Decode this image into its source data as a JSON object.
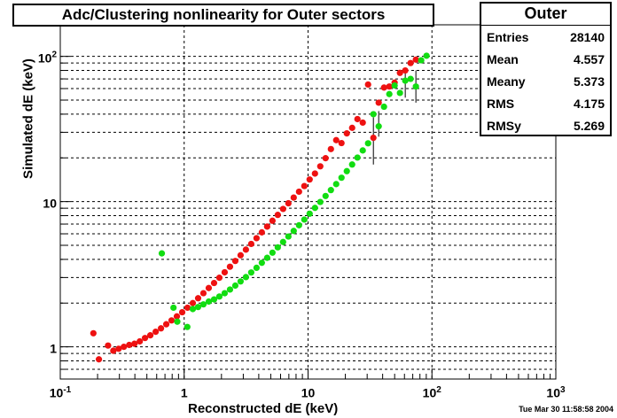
{
  "title": "Adc/Clustering nonlinearity for Outer sectors",
  "stats": {
    "title": "Outer",
    "rows": [
      {
        "label": "Entries",
        "value": "28140"
      },
      {
        "label": "Mean",
        "value": "4.557"
      },
      {
        "label": "Meany",
        "value": "5.373"
      },
      {
        "label": "RMS",
        "value": "4.175"
      },
      {
        "label": "RMSy",
        "value": "5.269"
      }
    ]
  },
  "footer": "Tue Mar 30 11:58:58 2004",
  "chart_data": {
    "type": "scatter",
    "title": "Adc/Clustering nonlinearity for Outer sectors",
    "xlabel": "Reconstructed dE (keV)",
    "ylabel": "Simulated dE (keV)",
    "xscale": "log",
    "yscale": "log",
    "xlim": [
      0.1,
      1000
    ],
    "ylim": [
      0.6,
      165
    ],
    "grid": true,
    "x_ticks": [
      {
        "value": 0.1,
        "base": "10",
        "exp": "-1"
      },
      {
        "value": 1,
        "base": "1",
        "exp": ""
      },
      {
        "value": 10,
        "base": "10",
        "exp": ""
      },
      {
        "value": 100,
        "base": "10",
        "exp": "2"
      },
      {
        "value": 1000,
        "base": "10",
        "exp": "3"
      }
    ],
    "y_ticks": [
      {
        "value": 1,
        "base": "1",
        "exp": ""
      },
      {
        "value": 10,
        "base": "10",
        "exp": ""
      },
      {
        "value": 100,
        "base": "10",
        "exp": "2"
      }
    ],
    "series": [
      {
        "color": "#ee1111",
        "points": [
          {
            "x": 0.185,
            "y": 1.24
          },
          {
            "x": 0.205,
            "y": 0.82
          },
          {
            "x": 0.243,
            "y": 1.02
          },
          {
            "x": 0.268,
            "y": 0.94
          },
          {
            "x": 0.296,
            "y": 0.97
          },
          {
            "x": 0.326,
            "y": 1.0
          },
          {
            "x": 0.36,
            "y": 1.03
          },
          {
            "x": 0.397,
            "y": 1.05
          },
          {
            "x": 0.438,
            "y": 1.09
          },
          {
            "x": 0.483,
            "y": 1.15
          },
          {
            "x": 0.533,
            "y": 1.2
          },
          {
            "x": 0.589,
            "y": 1.27
          },
          {
            "x": 0.65,
            "y": 1.34
          },
          {
            "x": 0.717,
            "y": 1.43
          },
          {
            "x": 0.791,
            "y": 1.52
          },
          {
            "x": 0.873,
            "y": 1.62
          },
          {
            "x": 0.964,
            "y": 1.73
          },
          {
            "x": 1.064,
            "y": 1.86
          },
          {
            "x": 1.174,
            "y": 2.0
          },
          {
            "x": 1.296,
            "y": 2.16
          },
          {
            "x": 1.43,
            "y": 2.34
          },
          {
            "x": 1.579,
            "y": 2.54
          },
          {
            "x": 1.743,
            "y": 2.75
          },
          {
            "x": 1.923,
            "y": 2.99
          },
          {
            "x": 2.123,
            "y": 3.26
          },
          {
            "x": 2.343,
            "y": 3.56
          },
          {
            "x": 2.586,
            "y": 3.9
          },
          {
            "x": 2.854,
            "y": 4.27
          },
          {
            "x": 3.15,
            "y": 4.67
          },
          {
            "x": 3.477,
            "y": 5.11
          },
          {
            "x": 3.838,
            "y": 5.6
          },
          {
            "x": 4.236,
            "y": 6.14
          },
          {
            "x": 4.676,
            "y": 6.73
          },
          {
            "x": 5.161,
            "y": 7.38
          },
          {
            "x": 5.696,
            "y": 8.1
          },
          {
            "x": 6.287,
            "y": 8.9
          },
          {
            "x": 6.94,
            "y": 9.74
          },
          {
            "x": 7.66,
            "y": 10.66
          },
          {
            "x": 8.455,
            "y": 11.7
          },
          {
            "x": 9.332,
            "y": 12.8
          },
          {
            "x": 10.3,
            "y": 14.2
          },
          {
            "x": 11.37,
            "y": 15.6
          },
          {
            "x": 12.55,
            "y": 17.5
          },
          {
            "x": 13.85,
            "y": 19.9
          },
          {
            "x": 15.29,
            "y": 23.0
          },
          {
            "x": 16.87,
            "y": 26.5
          },
          {
            "x": 18.62,
            "y": 25.3
          },
          {
            "x": 20.55,
            "y": 29.5
          },
          {
            "x": 22.69,
            "y": 32.2
          },
          {
            "x": 25.04,
            "y": 37.0
          },
          {
            "x": 27.64,
            "y": 35.0
          },
          {
            "x": 30.51,
            "y": 64.0
          },
          {
            "x": 33.68,
            "y": 27.5
          },
          {
            "x": 37.17,
            "y": 48.0
          },
          {
            "x": 41.03,
            "y": 61.0
          },
          {
            "x": 45.29,
            "y": 62.0
          },
          {
            "x": 49.98,
            "y": 66.0
          },
          {
            "x": 55.17,
            "y": 77.0
          },
          {
            "x": 60.9,
            "y": 80.0
          },
          {
            "x": 67.22,
            "y": 90.0
          },
          {
            "x": 74.2,
            "y": 95.0
          }
        ]
      },
      {
        "color": "#11dd11",
        "points": [
          {
            "x": 0.66,
            "y": 4.4
          },
          {
            "x": 0.82,
            "y": 1.86
          },
          {
            "x": 0.88,
            "y": 1.49
          },
          {
            "x": 1.06,
            "y": 1.37
          },
          {
            "x": 1.174,
            "y": 1.82
          },
          {
            "x": 1.296,
            "y": 1.88
          },
          {
            "x": 1.43,
            "y": 1.96
          },
          {
            "x": 1.579,
            "y": 2.05
          },
          {
            "x": 1.743,
            "y": 2.12
          },
          {
            "x": 1.923,
            "y": 2.22
          },
          {
            "x": 2.123,
            "y": 2.34
          },
          {
            "x": 2.343,
            "y": 2.48
          },
          {
            "x": 2.586,
            "y": 2.64
          },
          {
            "x": 2.854,
            "y": 2.82
          },
          {
            "x": 3.15,
            "y": 3.02
          },
          {
            "x": 3.477,
            "y": 3.25
          },
          {
            "x": 3.838,
            "y": 3.5
          },
          {
            "x": 4.236,
            "y": 3.79
          },
          {
            "x": 4.676,
            "y": 4.1
          },
          {
            "x": 5.161,
            "y": 4.45
          },
          {
            "x": 5.696,
            "y": 4.84
          },
          {
            "x": 6.287,
            "y": 5.27
          },
          {
            "x": 6.94,
            "y": 5.75
          },
          {
            "x": 7.66,
            "y": 6.28
          },
          {
            "x": 8.455,
            "y": 6.87
          },
          {
            "x": 9.332,
            "y": 7.52
          },
          {
            "x": 10.3,
            "y": 8.25
          },
          {
            "x": 11.37,
            "y": 9.05
          },
          {
            "x": 12.55,
            "y": 9.94
          },
          {
            "x": 13.85,
            "y": 10.93
          },
          {
            "x": 15.29,
            "y": 12.0
          },
          {
            "x": 16.87,
            "y": 13.2
          },
          {
            "x": 18.62,
            "y": 14.6
          },
          {
            "x": 20.55,
            "y": 16.2
          },
          {
            "x": 22.69,
            "y": 18.0
          },
          {
            "x": 25.04,
            "y": 20.1
          },
          {
            "x": 27.64,
            "y": 22.5
          },
          {
            "x": 30.51,
            "y": 25.2
          },
          {
            "x": 33.68,
            "y": 40.0
          },
          {
            "x": 37.17,
            "y": 33.0
          },
          {
            "x": 41.03,
            "y": 45.0
          },
          {
            "x": 45.29,
            "y": 55.0
          },
          {
            "x": 49.98,
            "y": 63.0
          },
          {
            "x": 55.17,
            "y": 56.0
          },
          {
            "x": 60.9,
            "y": 68.0
          },
          {
            "x": 67.22,
            "y": 70.0
          },
          {
            "x": 74.2,
            "y": 62.0
          },
          {
            "x": 81.9,
            "y": 94.0
          },
          {
            "x": 90.4,
            "y": 101.0
          }
        ]
      }
    ],
    "error_bars": [
      {
        "x": 33.68,
        "y_low": 18.0,
        "y_high": 38.0
      },
      {
        "x": 37.17,
        "y_low": 28.0,
        "y_high": 42.0
      },
      {
        "x": 60.9,
        "y_low": 52.0,
        "y_high": 80.0
      },
      {
        "x": 74.2,
        "y_low": 48.0,
        "y_high": 80.0
      }
    ]
  }
}
